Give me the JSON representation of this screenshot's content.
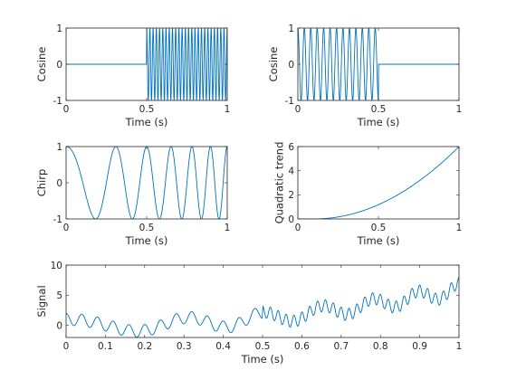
{
  "figure": {
    "background": "#ffffff",
    "line_color": "#0072BD",
    "axis_color": "#262626"
  },
  "chart_data": [
    {
      "name": "cosine-late",
      "type": "line",
      "xlabel": "Time (s)",
      "ylabel": "Cosine",
      "xlim": [
        0,
        1
      ],
      "ylim": [
        -1,
        1
      ],
      "xticks": [
        0,
        0.5,
        1
      ],
      "yticks": [
        -1,
        0,
        1
      ],
      "xtick_labels": [
        "0",
        "0.5",
        "1"
      ],
      "ytick_labels": [
        "-1",
        "0",
        "1"
      ],
      "grid": false,
      "signal": {
        "kind": "cosine_gated",
        "frequency_hz": 50,
        "amplitude": 1,
        "on_interval": [
          0.5,
          1
        ],
        "samples": 1001
      }
    },
    {
      "name": "cosine-early",
      "type": "line",
      "xlabel": "Time (s)",
      "ylabel": "Cosine",
      "xlim": [
        0,
        1
      ],
      "ylim": [
        -1,
        1
      ],
      "xticks": [
        0,
        0.5,
        1
      ],
      "yticks": [
        -1,
        0,
        1
      ],
      "xtick_labels": [
        "0",
        "0.5",
        "1"
      ],
      "ytick_labels": [
        "-1",
        "0",
        "1"
      ],
      "grid": false,
      "signal": {
        "kind": "cosine_gated",
        "frequency_hz": 25,
        "amplitude": 1,
        "on_interval": [
          0,
          0.5
        ],
        "samples": 1001
      }
    },
    {
      "name": "chirp",
      "type": "line",
      "xlabel": "Time (s)",
      "ylabel": "Chirp",
      "xlim": [
        0,
        1
      ],
      "ylim": [
        -1,
        1
      ],
      "xticks": [
        0,
        0.5,
        1
      ],
      "yticks": [
        -1,
        0,
        1
      ],
      "xtick_labels": [
        "0",
        "0.5",
        "1"
      ],
      "ytick_labels": [
        "-1",
        "0",
        "1"
      ],
      "grid": false,
      "signal": {
        "kind": "chirp",
        "f0_hz": 2,
        "f1_hz": 10,
        "t1_s": 1,
        "amplitude": 1,
        "samples": 1001
      }
    },
    {
      "name": "quadratic-trend",
      "type": "line",
      "xlabel": "Time (s)",
      "ylabel": "Quadratic trend",
      "xlim": [
        0,
        1
      ],
      "ylim": [
        0,
        6
      ],
      "xticks": [
        0,
        0.5,
        1
      ],
      "yticks": [
        0,
        2,
        4,
        6
      ],
      "xtick_labels": [
        "0",
        "0.5",
        "1"
      ],
      "ytick_labels": [
        "0",
        "2",
        "4",
        "6"
      ],
      "grid": false,
      "signal": {
        "kind": "quadratic",
        "start_s": 0.1,
        "coefficient": 7.407,
        "samples": 1001
      }
    },
    {
      "name": "signal-sum",
      "type": "line",
      "xlabel": "Time (s)",
      "ylabel": "Signal",
      "xlim": [
        0,
        1
      ],
      "ylim": [
        -2,
        10
      ],
      "xticks": [
        0,
        0.1,
        0.2,
        0.3,
        0.4,
        0.5,
        0.6,
        0.7,
        0.8,
        0.9,
        1
      ],
      "yticks": [
        0,
        5,
        10
      ],
      "xtick_labels": [
        "0",
        "0.1",
        "0.2",
        "0.3",
        "0.4",
        "0.5",
        "0.6",
        "0.7",
        "0.8",
        "0.9",
        "1"
      ],
      "ytick_labels": [
        "0",
        "5",
        "10"
      ],
      "grid": false,
      "signal": {
        "kind": "sum_of_above",
        "samples": 1001
      }
    }
  ]
}
